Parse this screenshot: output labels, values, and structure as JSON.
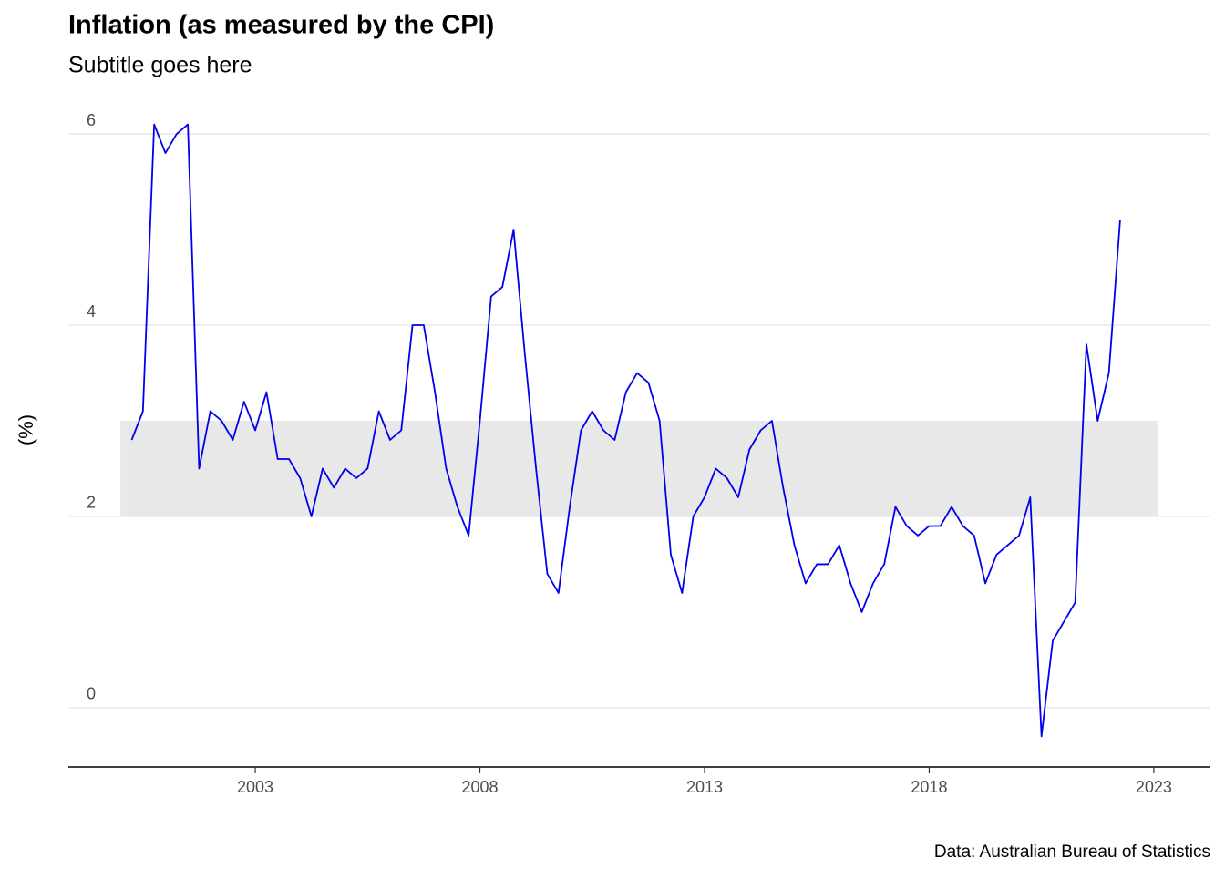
{
  "chart_data": {
    "type": "line",
    "title": "Inflation (as measured by the CPI)",
    "subtitle": "Subtitle goes here",
    "y_label": "(%)",
    "caption": "Data: Australian Bureau of Statistics",
    "x": [
      2000.25,
      2000.5,
      2000.75,
      2001,
      2001.25,
      2001.5,
      2001.75,
      2002,
      2002.25,
      2002.5,
      2002.75,
      2003,
      2003.25,
      2003.5,
      2003.75,
      2004,
      2004.25,
      2004.5,
      2004.75,
      2005,
      2005.25,
      2005.5,
      2005.75,
      2006,
      2006.25,
      2006.5,
      2006.75,
      2007,
      2007.25,
      2007.5,
      2007.75,
      2008,
      2008.25,
      2008.5,
      2008.75,
      2009,
      2009.25,
      2009.5,
      2009.75,
      2010,
      2010.25,
      2010.5,
      2010.75,
      2011,
      2011.25,
      2011.5,
      2011.75,
      2012,
      2012.25,
      2012.5,
      2012.75,
      2013,
      2013.25,
      2013.5,
      2013.75,
      2014,
      2014.25,
      2014.5,
      2014.75,
      2015,
      2015.25,
      2015.5,
      2015.75,
      2016,
      2016.25,
      2016.5,
      2016.75,
      2017,
      2017.25,
      2017.5,
      2017.75,
      2018,
      2018.25,
      2018.5,
      2018.75,
      2019,
      2019.25,
      2019.5,
      2019.75,
      2020,
      2020.25,
      2020.5,
      2020.75,
      2021,
      2021.25,
      2021.5,
      2021.75,
      2022,
      2022.25
    ],
    "series": [
      {
        "name": "CPI",
        "color": "#0000ee",
        "values": [
          2.8,
          3.1,
          6.1,
          5.8,
          6.0,
          6.1,
          2.5,
          3.1,
          3.0,
          2.8,
          3.2,
          2.9,
          3.3,
          2.6,
          2.6,
          2.4,
          2.0,
          2.5,
          2.3,
          2.5,
          2.4,
          2.5,
          3.1,
          2.8,
          2.9,
          4.0,
          4.0,
          3.3,
          2.5,
          2.1,
          1.8,
          3.0,
          4.3,
          4.4,
          5.0,
          3.7,
          2.5,
          1.4,
          1.2,
          2.1,
          2.9,
          3.1,
          2.9,
          2.8,
          3.3,
          3.5,
          3.4,
          3.0,
          1.6,
          1.2,
          2.0,
          2.2,
          2.5,
          2.4,
          2.2,
          2.7,
          2.9,
          3.0,
          2.3,
          1.7,
          1.3,
          1.5,
          1.5,
          1.7,
          1.3,
          1.0,
          1.3,
          1.5,
          2.1,
          1.9,
          1.8,
          1.9,
          1.9,
          2.1,
          1.9,
          1.8,
          1.3,
          1.6,
          1.7,
          1.8,
          2.2,
          -0.3,
          0.7,
          0.9,
          1.1,
          3.8,
          3.0,
          3.5,
          5.1
        ]
      }
    ],
    "target_band": {
      "xlim": [
        2000,
        2023.1
      ],
      "ylim": [
        2,
        3
      ],
      "color": "#e8e8e8"
    },
    "xlim": [
      1998.84,
      2024.26
    ],
    "ylim": [
      -0.62,
      6.42
    ],
    "xticks": [
      2003,
      2008,
      2013,
      2018,
      2023
    ],
    "yticks": [
      0,
      2,
      4,
      6
    ],
    "grid": true
  }
}
